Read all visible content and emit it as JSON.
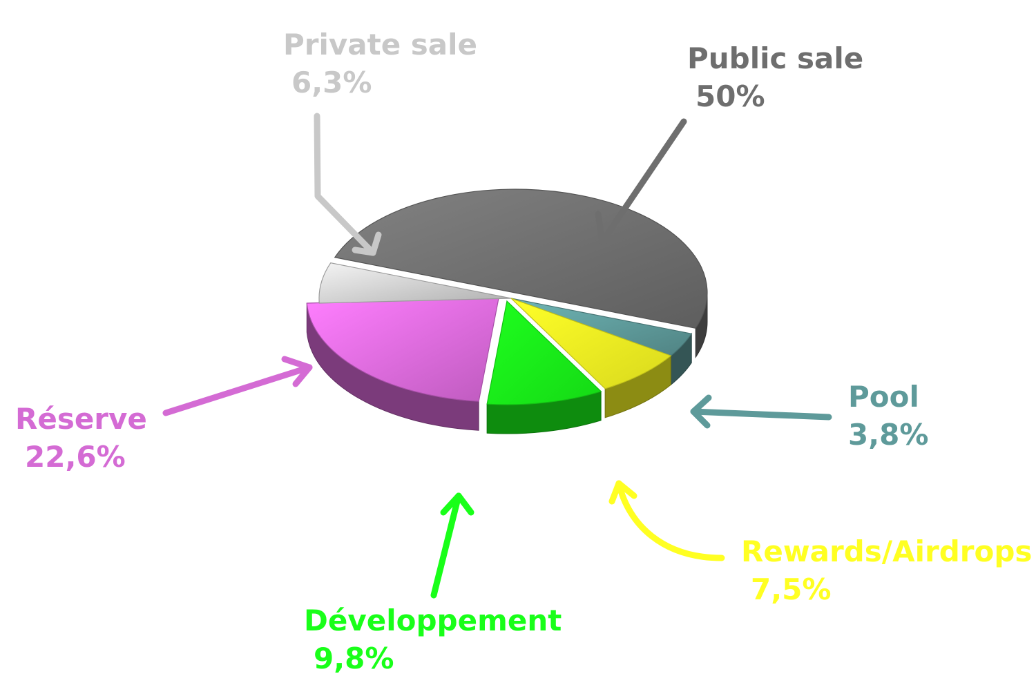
{
  "chart_data": {
    "type": "pie",
    "title": "",
    "slices": [
      {
        "name": "Public sale",
        "value": 50,
        "label": "50%",
        "color": "#6e6e6e"
      },
      {
        "name": "Pool",
        "value": 3.8,
        "label": "3,8%",
        "color": "#5e9a9a"
      },
      {
        "name": "Rewards/Airdrops",
        "value": 7.5,
        "label": "7,5%",
        "color": "#ffff22"
      },
      {
        "name": "Développement",
        "value": 9.8,
        "label": "9,8%",
        "color": "#19ff19"
      },
      {
        "name": "Réserve",
        "value": 22.6,
        "label": "22,6%",
        "color": "#df6bdf"
      },
      {
        "name": "Private sale",
        "value": 6.3,
        "label": "6,3%",
        "color": "#cfcfcf"
      }
    ],
    "style": "3d-exploded",
    "legend": "none"
  }
}
